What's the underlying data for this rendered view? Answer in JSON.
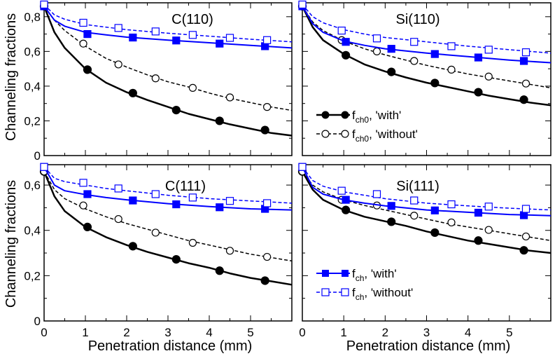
{
  "figure": {
    "ylabel": "Channeling fractions",
    "xlabel": "Penetration distance (mm)"
  },
  "legend_top": [
    {
      "symbol": "f",
      "sub": "ch0",
      "label": ", 'with'",
      "series": "fch0_with"
    },
    {
      "symbol": "f",
      "sub": "ch0",
      "label": ", 'without'",
      "series": "fch0_without"
    }
  ],
  "legend_bottom": [
    {
      "symbol": "f",
      "sub": "ch",
      "label": ", 'with'",
      "series": "fch_with"
    },
    {
      "symbol": "f",
      "sub": "ch",
      "label": ", 'without'",
      "series": "fch_without"
    }
  ],
  "colors": {
    "with0": "#000000",
    "without0": "#000000",
    "with": "#0000ff",
    "without": "#0000ff"
  },
  "chart_data": [
    {
      "type": "line",
      "title": "C(110)",
      "xlim": [
        0,
        6
      ],
      "ylim": [
        0,
        0.88
      ],
      "xticks": [
        0,
        1,
        2,
        3,
        4,
        5
      ],
      "xtick_labels": [
        "0",
        "1",
        "2",
        "3",
        "4",
        "5"
      ],
      "yticks": [
        0,
        0.2,
        0.4,
        0.6,
        0.8
      ],
      "ytick_labels": [
        "0",
        "0,2",
        "0,4",
        "0,6",
        "0,8"
      ],
      "series": [
        {
          "name": "fch0_with",
          "x": [
            0,
            0.25,
            0.5,
            1.0,
            1.5,
            2.0,
            2.5,
            3.0,
            3.5,
            4.0,
            4.5,
            5.0,
            5.5,
            6.0
          ],
          "y": [
            0.86,
            0.71,
            0.62,
            0.5,
            0.42,
            0.365,
            0.32,
            0.28,
            0.24,
            0.21,
            0.18,
            0.155,
            0.13,
            0.115
          ],
          "marker_x": [
            0,
            1.05,
            2.15,
            3.2,
            4.25,
            5.35
          ],
          "marker_y": [
            0.86,
            0.495,
            0.36,
            0.262,
            0.2,
            0.147
          ]
        },
        {
          "name": "fch0_without",
          "x": [
            0,
            0.25,
            0.5,
            1.0,
            1.5,
            2.0,
            2.5,
            3.0,
            3.5,
            4.0,
            4.5,
            5.0,
            5.5,
            6.0
          ],
          "y": [
            0.86,
            0.78,
            0.72,
            0.63,
            0.56,
            0.51,
            0.465,
            0.425,
            0.395,
            0.36,
            0.33,
            0.305,
            0.28,
            0.26
          ],
          "marker_x": [
            0,
            0.95,
            1.8,
            2.7,
            3.6,
            4.5,
            5.4
          ],
          "marker_y": [
            0.86,
            0.645,
            0.525,
            0.445,
            0.39,
            0.335,
            0.28
          ]
        },
        {
          "name": "fch_with",
          "x": [
            0,
            0.25,
            0.5,
            1.0,
            1.5,
            2.0,
            3.0,
            4.0,
            5.0,
            6.0
          ],
          "y": [
            0.86,
            0.78,
            0.745,
            0.71,
            0.695,
            0.682,
            0.665,
            0.65,
            0.635,
            0.62
          ],
          "marker_x": [
            0,
            1.05,
            2.15,
            3.2,
            4.25,
            5.35
          ],
          "marker_y": [
            0.86,
            0.7,
            0.68,
            0.663,
            0.645,
            0.63
          ]
        },
        {
          "name": "fch_without",
          "x": [
            0,
            0.25,
            0.5,
            1.0,
            1.5,
            2.0,
            3.0,
            4.0,
            5.0,
            6.0
          ],
          "y": [
            0.87,
            0.81,
            0.785,
            0.755,
            0.74,
            0.725,
            0.705,
            0.688,
            0.67,
            0.655
          ],
          "marker_x": [
            0,
            0.95,
            1.8,
            2.7,
            3.6,
            4.5,
            5.4
          ],
          "marker_y": [
            0.87,
            0.765,
            0.735,
            0.715,
            0.695,
            0.678,
            0.665
          ]
        }
      ]
    },
    {
      "type": "line",
      "title": "Si(110)",
      "xlim": [
        0,
        6
      ],
      "ylim": [
        0,
        0.88
      ],
      "xticks": [
        0,
        1,
        2,
        3,
        4,
        5
      ],
      "xtick_labels": [
        "0",
        "1",
        "2",
        "3",
        "4",
        "5"
      ],
      "yticks": [
        0,
        0.2,
        0.4,
        0.6,
        0.8
      ],
      "ytick_labels": [
        "0",
        "0,2",
        "0,4",
        "0,6",
        "0,8"
      ],
      "series": [
        {
          "name": "fch0_with",
          "x": [
            0,
            0.25,
            0.5,
            1.0,
            1.5,
            2.0,
            2.5,
            3.0,
            3.5,
            4.0,
            4.5,
            5.0,
            5.5,
            6.0
          ],
          "y": [
            0.86,
            0.74,
            0.665,
            0.585,
            0.525,
            0.485,
            0.45,
            0.42,
            0.395,
            0.37,
            0.345,
            0.325,
            0.305,
            0.29
          ],
          "marker_x": [
            0,
            1.05,
            2.15,
            3.2,
            4.25,
            5.35
          ],
          "marker_y": [
            0.86,
            0.578,
            0.482,
            0.418,
            0.365,
            0.322
          ]
        },
        {
          "name": "fch0_without",
          "x": [
            0,
            0.25,
            0.5,
            1.0,
            1.5,
            2.0,
            2.5,
            3.0,
            3.5,
            4.0,
            4.5,
            5.0,
            5.5,
            6.0
          ],
          "y": [
            0.86,
            0.77,
            0.72,
            0.66,
            0.615,
            0.58,
            0.55,
            0.52,
            0.495,
            0.47,
            0.45,
            0.43,
            0.41,
            0.39
          ],
          "marker_x": [
            0,
            0.95,
            1.8,
            2.7,
            3.6,
            4.5,
            5.4
          ],
          "marker_y": [
            0.86,
            0.665,
            0.6,
            0.545,
            0.495,
            0.455,
            0.415
          ]
        },
        {
          "name": "fch_with",
          "x": [
            0,
            0.25,
            0.5,
            1.0,
            1.5,
            2.0,
            3.0,
            4.0,
            5.0,
            6.0
          ],
          "y": [
            0.86,
            0.76,
            0.71,
            0.66,
            0.635,
            0.615,
            0.59,
            0.57,
            0.55,
            0.535
          ],
          "marker_x": [
            0,
            1.05,
            2.15,
            3.2,
            4.25,
            5.35
          ],
          "marker_y": [
            0.86,
            0.655,
            0.615,
            0.585,
            0.565,
            0.545
          ]
        },
        {
          "name": "fch_without",
          "x": [
            0,
            0.25,
            0.5,
            1.0,
            1.5,
            2.0,
            3.0,
            4.0,
            5.0,
            6.0
          ],
          "y": [
            0.87,
            0.8,
            0.765,
            0.725,
            0.7,
            0.68,
            0.655,
            0.63,
            0.61,
            0.59
          ],
          "marker_x": [
            0,
            0.95,
            1.8,
            2.7,
            3.6,
            4.5,
            5.4
          ],
          "marker_y": [
            0.87,
            0.72,
            0.675,
            0.655,
            0.63,
            0.61,
            0.595
          ]
        }
      ]
    },
    {
      "type": "line",
      "title": "C(111)",
      "xlim": [
        0,
        6
      ],
      "ylim": [
        0,
        0.69
      ],
      "xticks": [
        0,
        1,
        2,
        3,
        4,
        5
      ],
      "xtick_labels": [
        "0",
        "1",
        "2",
        "3",
        "4",
        "5"
      ],
      "yticks": [
        0,
        0.2,
        0.4,
        0.6
      ],
      "ytick_labels": [
        "0",
        "0,2",
        "0,4",
        "0,6"
      ],
      "series": [
        {
          "name": "fch0_with",
          "x": [
            0,
            0.25,
            0.5,
            1.0,
            1.5,
            2.0,
            2.5,
            3.0,
            3.5,
            4.0,
            4.5,
            5.0,
            5.5,
            6.0
          ],
          "y": [
            0.66,
            0.55,
            0.485,
            0.415,
            0.37,
            0.335,
            0.305,
            0.28,
            0.255,
            0.235,
            0.21,
            0.19,
            0.175,
            0.16
          ],
          "marker_x": [
            0,
            1.05,
            2.15,
            3.2,
            4.25,
            5.35
          ],
          "marker_y": [
            0.66,
            0.415,
            0.33,
            0.272,
            0.222,
            0.178
          ]
        },
        {
          "name": "fch0_without",
          "x": [
            0,
            0.25,
            0.5,
            1.0,
            1.5,
            2.0,
            2.5,
            3.0,
            3.5,
            4.0,
            4.5,
            5.0,
            5.5,
            6.0
          ],
          "y": [
            0.66,
            0.58,
            0.54,
            0.495,
            0.46,
            0.43,
            0.405,
            0.38,
            0.355,
            0.335,
            0.315,
            0.295,
            0.28,
            0.265
          ],
          "marker_x": [
            0,
            0.95,
            1.8,
            2.7,
            3.6,
            4.5,
            5.4
          ],
          "marker_y": [
            0.66,
            0.51,
            0.45,
            0.39,
            0.345,
            0.31,
            0.283
          ]
        },
        {
          "name": "fch_with",
          "x": [
            0,
            0.25,
            0.5,
            1.0,
            1.5,
            2.0,
            3.0,
            4.0,
            5.0,
            6.0
          ],
          "y": [
            0.68,
            0.6,
            0.575,
            0.558,
            0.545,
            0.535,
            0.518,
            0.505,
            0.495,
            0.49
          ],
          "marker_x": [
            0,
            1.05,
            2.15,
            3.2,
            4.25,
            5.35
          ],
          "marker_y": [
            0.68,
            0.56,
            0.532,
            0.515,
            0.502,
            0.495
          ]
        },
        {
          "name": "fch_without",
          "x": [
            0,
            0.25,
            0.5,
            1.0,
            1.5,
            2.0,
            3.0,
            4.0,
            5.0,
            6.0
          ],
          "y": [
            0.68,
            0.63,
            0.615,
            0.6,
            0.585,
            0.575,
            0.555,
            0.54,
            0.53,
            0.52
          ],
          "marker_x": [
            0,
            0.95,
            1.8,
            2.7,
            3.6,
            4.5,
            5.4
          ],
          "marker_y": [
            0.68,
            0.61,
            0.585,
            0.56,
            0.545,
            0.53,
            0.52
          ]
        }
      ]
    },
    {
      "type": "line",
      "title": "Si(111)",
      "xlim": [
        0,
        6
      ],
      "ylim": [
        0,
        0.69
      ],
      "xticks": [
        0,
        1,
        2,
        3,
        4,
        5
      ],
      "xtick_labels": [
        "0",
        "1",
        "2",
        "3",
        "4",
        "5"
      ],
      "yticks": [
        0,
        0.2,
        0.4,
        0.6
      ],
      "ytick_labels": [
        "0",
        "0,2",
        "0,4",
        "0,6"
      ],
      "series": [
        {
          "name": "fch0_with",
          "x": [
            0,
            0.25,
            0.5,
            1.0,
            1.5,
            2.0,
            2.5,
            3.0,
            3.5,
            4.0,
            4.5,
            5.0,
            5.5,
            6.0
          ],
          "y": [
            0.66,
            0.58,
            0.535,
            0.49,
            0.46,
            0.44,
            0.42,
            0.395,
            0.375,
            0.355,
            0.34,
            0.325,
            0.31,
            0.3
          ],
          "marker_x": [
            0,
            1.05,
            2.15,
            3.2,
            4.25,
            5.35
          ],
          "marker_y": [
            0.66,
            0.49,
            0.438,
            0.39,
            0.355,
            0.312
          ]
        },
        {
          "name": "fch0_without",
          "x": [
            0,
            0.25,
            0.5,
            1.0,
            1.5,
            2.0,
            2.5,
            3.0,
            3.5,
            4.0,
            4.5,
            5.0,
            5.5,
            6.0
          ],
          "y": [
            0.66,
            0.6,
            0.57,
            0.535,
            0.51,
            0.49,
            0.47,
            0.45,
            0.43,
            0.415,
            0.4,
            0.385,
            0.37,
            0.355
          ],
          "marker_x": [
            0,
            0.95,
            1.8,
            2.7,
            3.6,
            4.5,
            5.4
          ],
          "marker_y": [
            0.66,
            0.535,
            0.51,
            0.465,
            0.435,
            0.402,
            0.373
          ]
        },
        {
          "name": "fch_with",
          "x": [
            0,
            0.25,
            0.5,
            1.0,
            1.5,
            2.0,
            3.0,
            4.0,
            5.0,
            6.0
          ],
          "y": [
            0.68,
            0.59,
            0.56,
            0.535,
            0.52,
            0.508,
            0.49,
            0.48,
            0.47,
            0.465
          ],
          "marker_x": [
            0,
            1.05,
            2.15,
            3.2,
            4.25,
            5.35
          ],
          "marker_y": [
            0.68,
            0.535,
            0.508,
            0.488,
            0.478,
            0.467
          ]
        },
        {
          "name": "fch_without",
          "x": [
            0,
            0.25,
            0.5,
            1.0,
            1.5,
            2.0,
            3.0,
            4.0,
            5.0,
            6.0
          ],
          "y": [
            0.68,
            0.62,
            0.595,
            0.57,
            0.555,
            0.54,
            0.52,
            0.508,
            0.498,
            0.49
          ],
          "marker_x": [
            0,
            0.95,
            1.8,
            2.7,
            3.6,
            4.5,
            5.4
          ],
          "marker_y": [
            0.68,
            0.575,
            0.56,
            0.532,
            0.515,
            0.505,
            0.495
          ]
        }
      ]
    }
  ]
}
